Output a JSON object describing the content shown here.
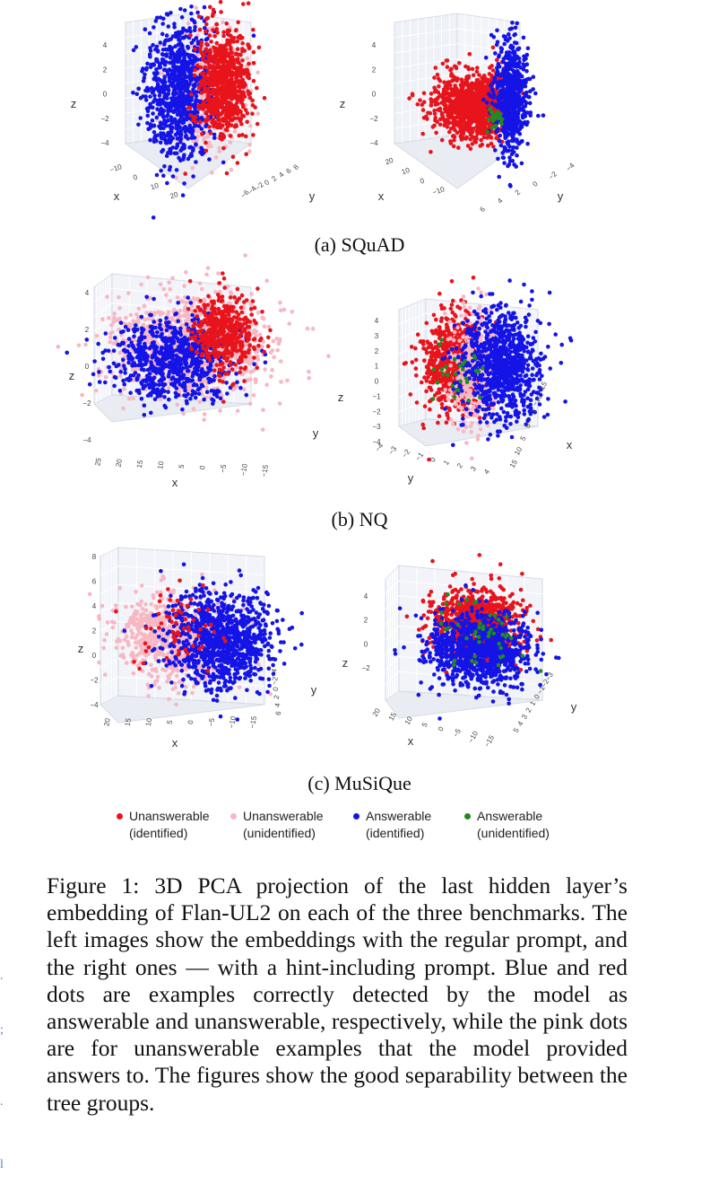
{
  "figure": {
    "subcaptions": [
      "(a) SQuAD",
      "(b) NQ",
      "(c) MuSiQue"
    ],
    "caption": "Figure 1: 3D PCA projection of the last hidden layer’s embedding of Flan-UL2 on each of the three benchmarks. The left images show the embeddings with the regular prompt, and the right ones — with a hint-including prompt. Blue and red dots are examples correctly detected by the model as answerable and unanswerable, respectively, while the pink dots are for unanswerable examples that the model provided answers to. The figures show the good separability between the tree groups."
  },
  "legend": [
    {
      "line1": "Unanswerable",
      "line2": "(identified)",
      "color": "#e8141c"
    },
    {
      "line1": "Unanswerable",
      "line2": "(unidentified)",
      "color": "#f7b7c3"
    },
    {
      "line1": "Answerable",
      "line2": "(identified)",
      "color": "#1414e6"
    },
    {
      "line1": "Answerable",
      "line2": "(unidentified)",
      "color": "#1e8c1e"
    }
  ],
  "colors": {
    "red": "#e8141c",
    "pink": "#f7b7c3",
    "blue": "#1414e6",
    "green": "#1e8c1e"
  },
  "chart_data": [
    {
      "type": "scatter",
      "benchmark": "SQuAD",
      "prompt": "regular",
      "axes": {
        "x": "x",
        "y": "y",
        "z": "z"
      },
      "z_ticks": [
        "4",
        "2",
        "0",
        "−2",
        "−4"
      ],
      "x_ticks": [
        "−10",
        "0",
        "10",
        "20"
      ],
      "y_ticks": [
        "−6",
        "−4",
        "−2",
        "0",
        "2",
        "4",
        "6",
        "8"
      ]
    },
    {
      "type": "scatter",
      "benchmark": "SQuAD",
      "prompt": "hint-including",
      "axes": {
        "x": "x",
        "y": "y",
        "z": "z"
      },
      "z_ticks": [
        "4",
        "2",
        "0",
        "−2",
        "−4"
      ],
      "x_ticks": [
        "20",
        "10",
        "0",
        "−10"
      ],
      "y_ticks": [
        "6",
        "4",
        "2",
        "0",
        "−2",
        "−4"
      ]
    },
    {
      "type": "scatter",
      "benchmark": "NQ",
      "prompt": "regular",
      "axes": {
        "x": "x",
        "y": "y",
        "z": "z"
      },
      "z_ticks": [
        "4",
        "2",
        "0",
        "−2",
        "−4"
      ],
      "x_ticks": [
        "25",
        "20",
        "15",
        "10",
        "5",
        "0",
        "−5",
        "−10",
        "−15"
      ],
      "y_ticks": []
    },
    {
      "type": "scatter",
      "benchmark": "NQ",
      "prompt": "hint-including",
      "axes": {
        "x": "x",
        "y": "y",
        "z": "z"
      },
      "z_ticks": [
        "4",
        "3",
        "2",
        "1",
        "0",
        "−1",
        "−2",
        "−3",
        "−4"
      ],
      "x_ticks": [
        "−15",
        "−10",
        "−5",
        "0",
        "5",
        "10",
        "15"
      ],
      "y_ticks": [
        "−4",
        "−3",
        "−2",
        "−1",
        "0",
        "1",
        "2",
        "3",
        "4"
      ]
    },
    {
      "type": "scatter",
      "benchmark": "MuSiQue",
      "prompt": "regular",
      "axes": {
        "x": "x",
        "y": "y",
        "z": "z"
      },
      "z_ticks": [
        "8",
        "6",
        "4",
        "2",
        "0",
        "−2",
        "−4"
      ],
      "x_ticks": [
        "20",
        "15",
        "10",
        "5",
        "0",
        "−5",
        "−10",
        "−15"
      ],
      "y_ticks": [
        "−4",
        "−2",
        "0",
        "2",
        "4",
        "6"
      ]
    },
    {
      "type": "scatter",
      "benchmark": "MuSiQue",
      "prompt": "hint-including",
      "axes": {
        "x": "x",
        "y": "y",
        "z": "z"
      },
      "z_ticks": [
        "4",
        "2",
        "0",
        "−2"
      ],
      "x_ticks": [
        "20",
        "15",
        "10",
        "5",
        "0",
        "−5",
        "−10",
        "−15"
      ],
      "y_ticks": [
        "5",
        "4",
        "3",
        "2",
        "1",
        "0",
        "−1",
        "−2",
        "−3"
      ]
    }
  ]
}
